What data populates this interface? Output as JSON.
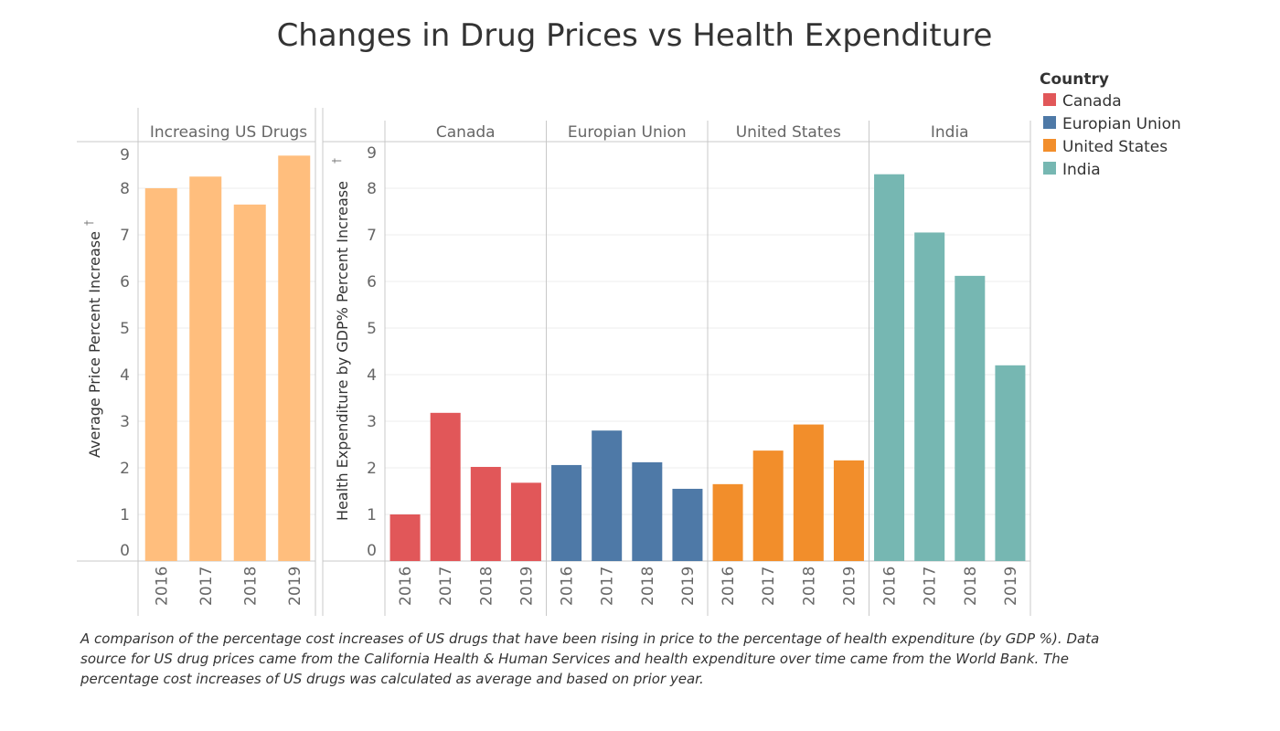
{
  "title": "Changes in Drug Prices vs Health Expenditure",
  "caption": "A comparison of the percentage cost increases of US drugs that have been rising in price to the percentage of health expenditure (by GDP %). Data source for US drug prices came from the California Health & Human Services and health expenditure over time came from the World Bank. The percentage cost increases of US drugs was calculated as average and based on prior year.",
  "legend": {
    "title": "Country",
    "items": [
      {
        "label": "Canada",
        "color": "#e15759"
      },
      {
        "label": "Europian Union",
        "color": "#4e79a7"
      },
      {
        "label": "United States",
        "color": "#f28e2b"
      },
      {
        "label": "India",
        "color": "#76b7b2"
      }
    ]
  },
  "chart_data": [
    {
      "type": "bar",
      "panel": "Increasing US Drugs",
      "ylabel": "Average Price Percent Increase",
      "ylim": [
        0,
        9
      ],
      "yticks": [
        0,
        1,
        2,
        3,
        4,
        5,
        6,
        7,
        8,
        9
      ],
      "categories": [
        "2016",
        "2017",
        "2018",
        "2019"
      ],
      "color": "#ffbe7d",
      "values": [
        8.0,
        8.25,
        7.65,
        8.7
      ]
    },
    {
      "type": "bar",
      "ylabel": "Health Expenditure by GDP% Percent Increase",
      "ylim": [
        0,
        9
      ],
      "yticks": [
        0,
        1,
        2,
        3,
        4,
        5,
        6,
        7,
        8,
        9
      ],
      "categories": [
        "2016",
        "2017",
        "2018",
        "2019"
      ],
      "series": [
        {
          "name": "Canada",
          "color": "#e15759",
          "values": [
            1.0,
            3.18,
            2.02,
            1.68
          ]
        },
        {
          "name": "Europian Union",
          "color": "#4e79a7",
          "values": [
            2.06,
            2.8,
            2.12,
            1.55
          ]
        },
        {
          "name": "United States",
          "color": "#f28e2b",
          "values": [
            1.65,
            2.37,
            2.93,
            2.16
          ]
        },
        {
          "name": "India",
          "color": "#76b7b2",
          "values": [
            8.3,
            7.05,
            6.12,
            4.2
          ]
        }
      ]
    }
  ]
}
